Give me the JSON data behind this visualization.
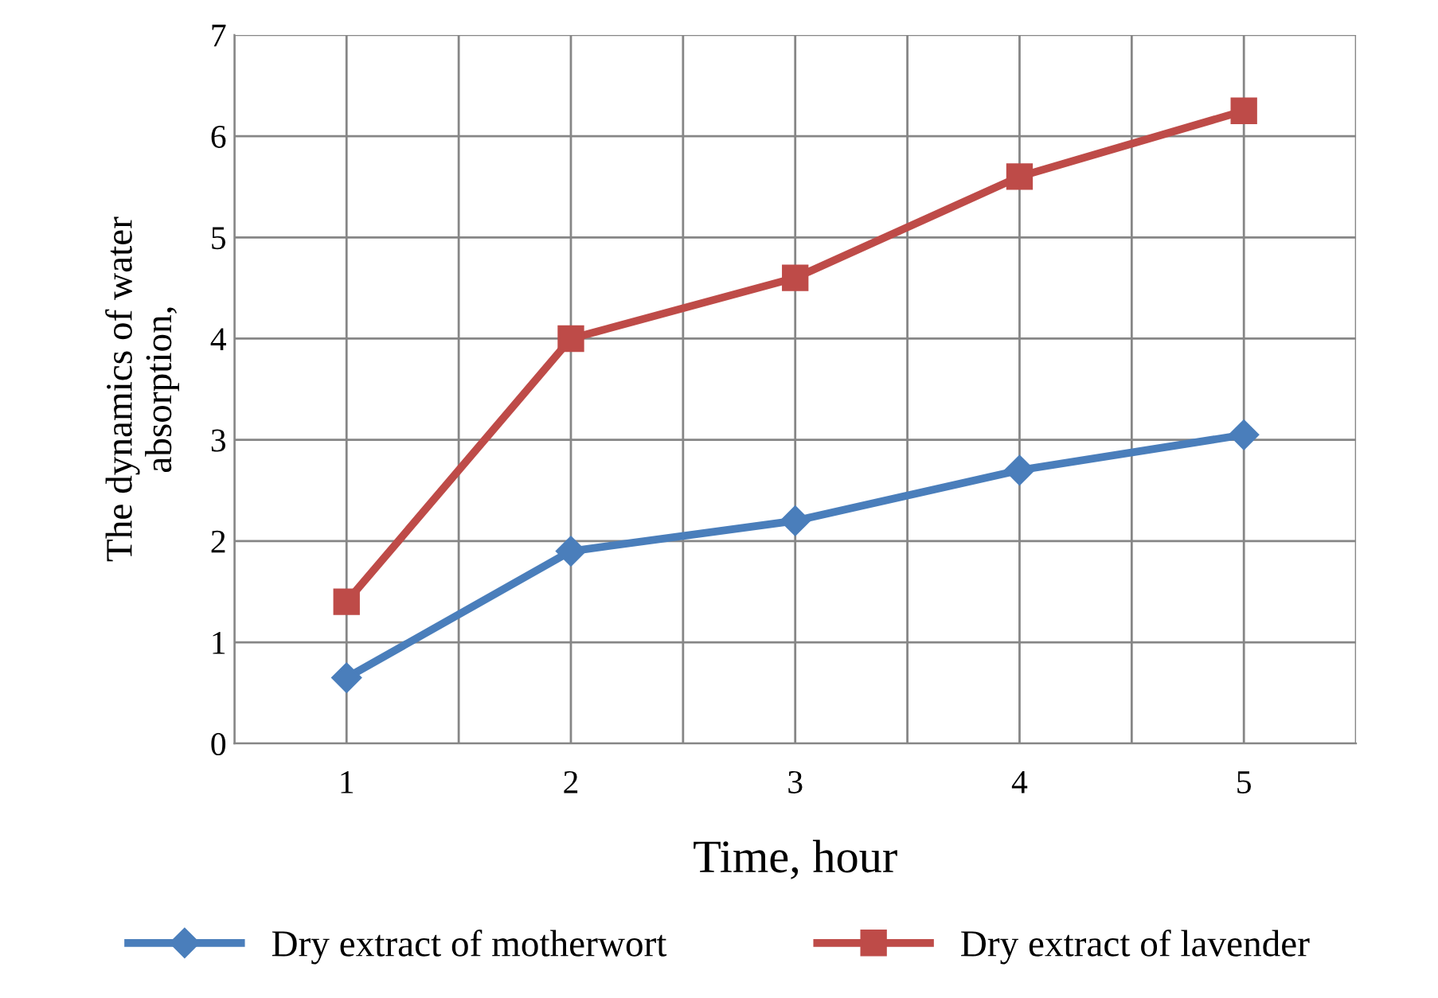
{
  "chart_data": {
    "type": "line",
    "xlabel": "Time, hour",
    "ylabel": "The dynamics of water\nabsorption,",
    "categories": [
      "1",
      "2",
      "3",
      "4",
      "5"
    ],
    "series": [
      {
        "name": "Dry extract of motherwort",
        "color": "#4a7ebb",
        "values": [
          0.65,
          1.9,
          2.2,
          2.7,
          3.05
        ],
        "marker": "diamond"
      },
      {
        "name": "Dry extract of lavender",
        "color": "#be4b48",
        "values": [
          1.4,
          4.0,
          4.6,
          5.6,
          6.25
        ],
        "marker": "square"
      }
    ],
    "ylim": [
      0,
      7
    ],
    "yticks": [
      0,
      1,
      2,
      3,
      4,
      5,
      6,
      7
    ],
    "grid": true,
    "legend": "bottom",
    "line_style": "solid"
  }
}
